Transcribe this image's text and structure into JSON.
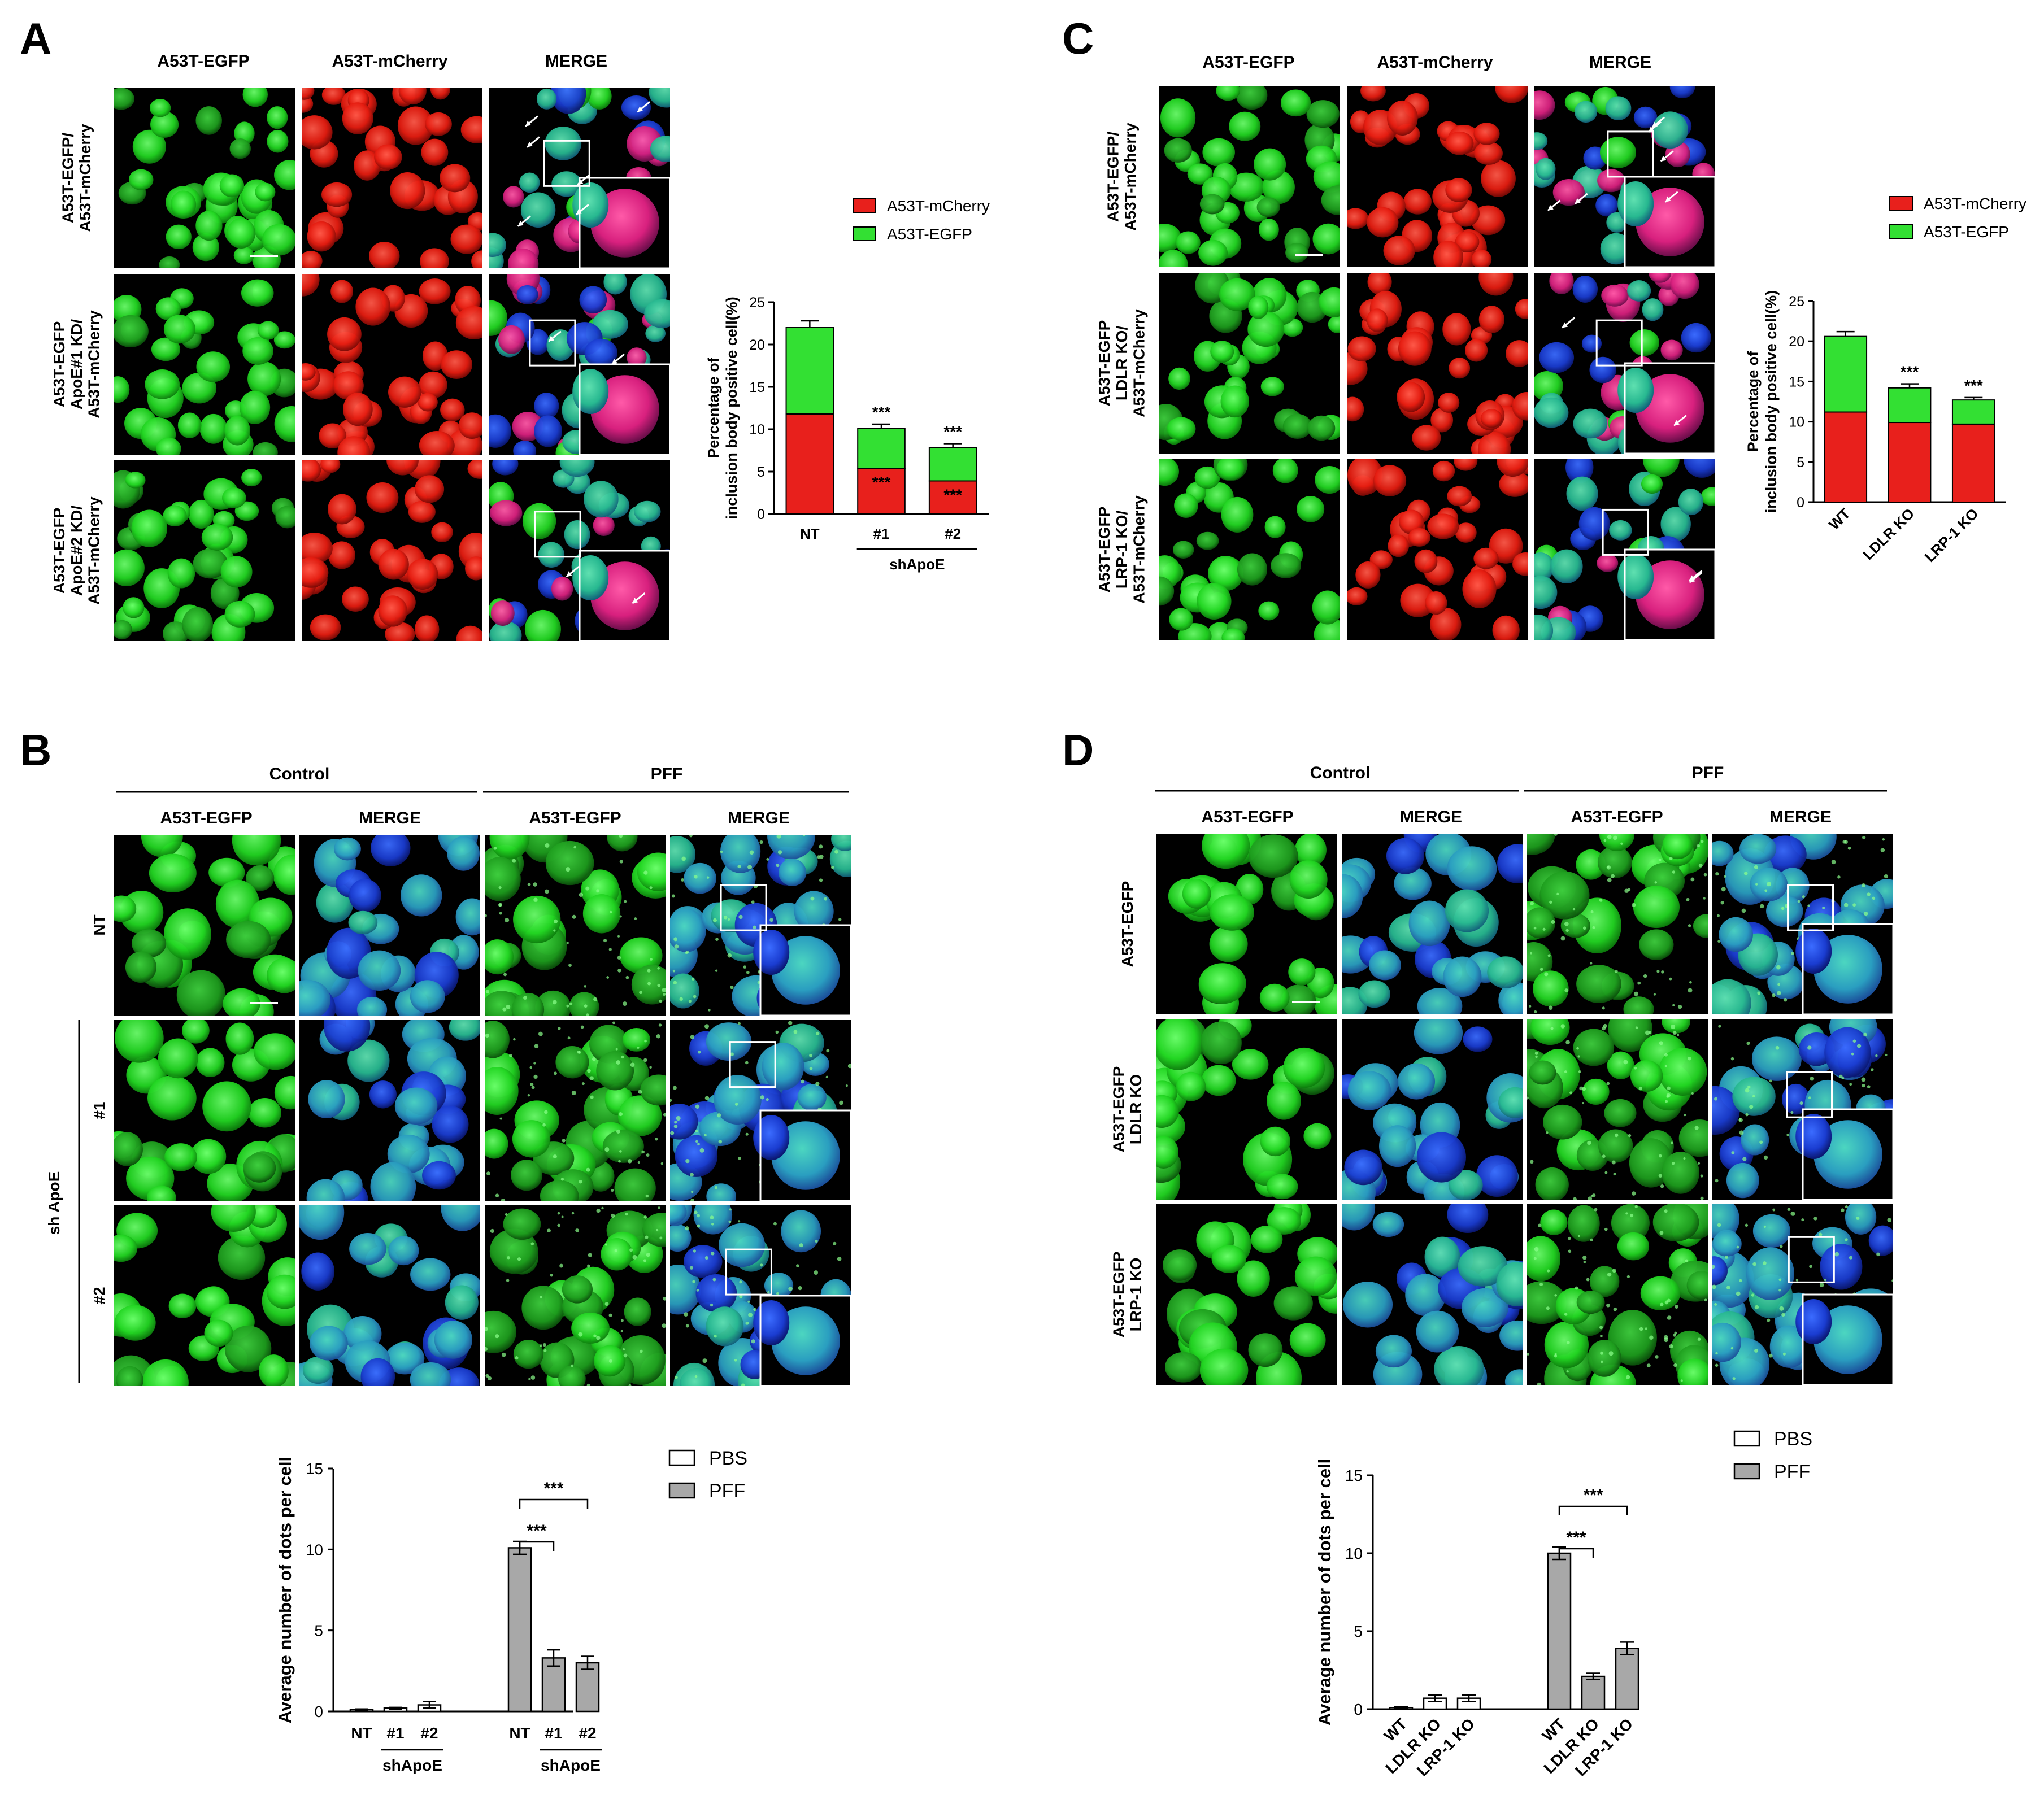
{
  "panels": {
    "A": {
      "letter": "A",
      "columns": [
        "A53T-EGFP",
        "A53T-mCherry",
        "MERGE"
      ],
      "rows": [
        [
          "A53T-EGFP/",
          "A53T-mCherry"
        ],
        [
          "A53T-EGFP",
          "ApoE#1 KD/",
          "A53T-mCherry"
        ],
        [
          "A53T-EGFP",
          "ApoE#2 KD/",
          "A53T-mCherry"
        ]
      ]
    },
    "B": {
      "letter": "B",
      "groups": [
        "Control",
        "PFF"
      ],
      "columns": [
        "A53T-EGFP",
        "MERGE",
        "A53T-EGFP",
        "MERGE"
      ],
      "rows": [
        "NT",
        "#1",
        "#2"
      ],
      "side_group": "sh ApoE"
    },
    "C": {
      "letter": "C",
      "columns": [
        "A53T-EGFP",
        "A53T-mCherry",
        "MERGE"
      ],
      "rows": [
        [
          "A53T-EGFP/",
          "A53T-mCherry"
        ],
        [
          "A53T-EGFP",
          "LDLR KO/",
          "A53T-mCherry"
        ],
        [
          "A53T-EGFP",
          "LRP-1 KO/",
          "A53T-mCherry"
        ]
      ]
    },
    "D": {
      "letter": "D",
      "groups": [
        "Control",
        "PFF"
      ],
      "columns": [
        "A53T-EGFP",
        "MERGE",
        "A53T-EGFP",
        "MERGE"
      ],
      "rows": [
        [
          "A53T-EGFP"
        ],
        [
          "A53T-EGFP",
          "LDLR KO"
        ],
        [
          "A53T-EGFP",
          "LRP-1 KO"
        ]
      ]
    }
  },
  "colors": {
    "mcherry": "#e8201c",
    "egfp": "#33e033",
    "pbs": "#ffffff",
    "pff": "#a8a8a8"
  },
  "chart_data": [
    {
      "id": "A",
      "type": "bar",
      "stacked": true,
      "ylabel": [
        "Percentage of",
        "inclusion body positive cell(%)"
      ],
      "ylim": [
        0,
        25
      ],
      "yticks": [
        0,
        5,
        10,
        15,
        20,
        25
      ],
      "categories": [
        "NT",
        "#1",
        "#2"
      ],
      "group_label": "shApoE",
      "series": [
        {
          "name": "A53T-mCherry",
          "color": "#e8201c",
          "values": [
            11.8,
            5.4,
            3.9
          ],
          "errors": [
            1.6,
            0.7,
            0.9
          ],
          "sig": [
            "",
            "***",
            "***"
          ]
        },
        {
          "name": "A53T-EGFP",
          "color": "#33e033",
          "values": [
            10.2,
            4.7,
            3.9
          ],
          "errors": [
            0.8,
            0.5,
            0.5
          ],
          "sig": [
            "",
            "***",
            "***"
          ]
        }
      ],
      "legend": "top-right"
    },
    {
      "id": "C",
      "type": "bar",
      "stacked": true,
      "ylabel": [
        "Percentage of",
        "inclusion body positive cell(%)"
      ],
      "ylim": [
        0,
        25
      ],
      "yticks": [
        0,
        5,
        10,
        15,
        20,
        25
      ],
      "categories": [
        "WT",
        "LDLR KO",
        "LRP-1 KO"
      ],
      "series": [
        {
          "name": "A53T-mCherry",
          "color": "#e8201c",
          "values": [
            11.2,
            9.9,
            9.7
          ],
          "errors": [
            0.4,
            0.5,
            0.2
          ],
          "sig": [
            "",
            "",
            ""
          ]
        },
        {
          "name": "A53T-EGFP",
          "color": "#33e033",
          "values": [
            9.4,
            4.3,
            3.0
          ],
          "errors": [
            0.6,
            0.5,
            0.3
          ],
          "sig": [
            "",
            "***",
            "***"
          ]
        }
      ],
      "legend": "top-right"
    },
    {
      "id": "B",
      "type": "bar",
      "ylabel": "Average number of dots per cell",
      "ylim": [
        0,
        15
      ],
      "yticks": [
        0,
        5,
        10,
        15
      ],
      "groups": [
        {
          "name": "PBS",
          "categories": [
            "NT",
            "#1",
            "#2"
          ],
          "values": [
            0.1,
            0.2,
            0.4
          ],
          "errors": [
            0.05,
            0.05,
            0.2
          ],
          "label": "shApoE"
        },
        {
          "name": "PFF",
          "categories": [
            "NT",
            "#1",
            "#2"
          ],
          "values": [
            10.1,
            3.3,
            3.0
          ],
          "errors": [
            0.4,
            0.5,
            0.4
          ],
          "label": "shApoE"
        }
      ],
      "comparisons": [
        {
          "from": [
            1,
            0
          ],
          "to": [
            1,
            1
          ],
          "text": "***"
        },
        {
          "from": [
            1,
            0
          ],
          "to": [
            1,
            2
          ],
          "text": "***"
        }
      ],
      "legend_entries": [
        "PBS",
        "PFF"
      ],
      "legend": "top-right"
    },
    {
      "id": "D",
      "type": "bar",
      "ylabel": "Average number of dots per cell",
      "ylim": [
        0,
        15
      ],
      "yticks": [
        0,
        5,
        10,
        15
      ],
      "groups": [
        {
          "name": "PBS",
          "categories": [
            "WT",
            "LDLR KO",
            "LRP-1 KO"
          ],
          "values": [
            0.1,
            0.7,
            0.7
          ],
          "errors": [
            0.05,
            0.2,
            0.2
          ]
        },
        {
          "name": "PFF",
          "categories": [
            "WT",
            "LDLR KO",
            "LRP-1 KO"
          ],
          "values": [
            10.0,
            2.1,
            3.9
          ],
          "errors": [
            0.4,
            0.2,
            0.4
          ]
        }
      ],
      "comparisons": [
        {
          "from": [
            1,
            0
          ],
          "to": [
            1,
            1
          ],
          "text": "***"
        },
        {
          "from": [
            1,
            0
          ],
          "to": [
            1,
            2
          ],
          "text": "***"
        }
      ],
      "legend_entries": [
        "PBS",
        "PFF"
      ],
      "legend": "top-right"
    }
  ]
}
